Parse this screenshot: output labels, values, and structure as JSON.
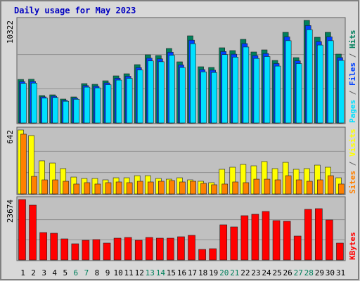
{
  "chart_data": [
    {
      "type": "bar",
      "title": "Daily usage for May 2023",
      "ylim": [
        0,
        10322
      ],
      "yticks": [
        10322
      ],
      "grid": true,
      "legend_separator": " / ",
      "series": [
        {
          "name": "Hits",
          "color": "#00805c",
          "values": [
            4380,
            4400,
            2757,
            2828,
            2404,
            2616,
            3959,
            3889,
            4242,
            4737,
            4949,
            5868,
            6858,
            6787,
            7494,
            6151,
            8767,
            5656,
            5585,
            7565,
            7282,
            8413,
            7141,
            7353,
            6292,
            9120,
            6575,
            10322,
            8625,
            9120,
            6928
          ]
        },
        {
          "name": "Files",
          "color": "#0040ff",
          "values": [
            4160,
            4180,
            2620,
            2690,
            2280,
            2490,
            3760,
            3690,
            4030,
            4500,
            4700,
            5570,
            6520,
            6450,
            7120,
            5840,
            8330,
            5370,
            5310,
            7190,
            6920,
            7990,
            6780,
            6990,
            5980,
            8660,
            6250,
            9800,
            8190,
            8660,
            6580
          ]
        },
        {
          "name": "Pages",
          "color": "#00e0ff",
          "values": [
            3980,
            4010,
            2500,
            2560,
            2180,
            2380,
            3600,
            3530,
            3850,
            4310,
            4490,
            5330,
            6240,
            6160,
            6810,
            5580,
            7970,
            5140,
            5080,
            6880,
            6620,
            7640,
            6490,
            6680,
            5720,
            8280,
            5970,
            9380,
            7840,
            8280,
            6290
          ]
        }
      ]
    },
    {
      "type": "bar",
      "ylim": [
        0,
        642
      ],
      "yticks": [
        642
      ],
      "grid": true,
      "legend_separator": " / ",
      "series": [
        {
          "name": "Visits",
          "color": "#ffff00",
          "values": [
            642,
            586,
            332,
            310,
            254,
            169,
            155,
            155,
            141,
            162,
            162,
            183,
            183,
            155,
            148,
            162,
            141,
            127,
            113,
            247,
            268,
            296,
            282,
            325,
            254,
            317,
            247,
            254,
            289,
            268,
            162
          ]
        },
        {
          "name": "Sites",
          "color": "#ff8000",
          "values": [
            600,
            176,
            141,
            141,
            127,
            99,
            113,
            99,
            113,
            120,
            113,
            127,
            120,
            127,
            134,
            120,
            127,
            106,
            92,
            99,
            120,
            113,
            148,
            148,
            141,
            183,
            141,
            127,
            141,
            183,
            99
          ]
        }
      ]
    },
    {
      "type": "bar",
      "ylim": [
        0,
        23674
      ],
      "yticks": [
        23674
      ],
      "grid": true,
      "categories": [
        "1",
        "2",
        "3",
        "4",
        "5",
        "6",
        "7",
        "8",
        "9",
        "10",
        "11",
        "12",
        "13",
        "14",
        "15",
        "16",
        "17",
        "18",
        "19",
        "20",
        "21",
        "22",
        "23",
        "24",
        "25",
        "26",
        "27",
        "28",
        "29",
        "30",
        "31"
      ],
      "category_colors": [
        "#000000",
        "#000000",
        "#000000",
        "#000000",
        "#000000",
        "#00805c",
        "#00805c",
        "#000000",
        "#000000",
        "#000000",
        "#000000",
        "#000000",
        "#00805c",
        "#00805c",
        "#000000",
        "#000000",
        "#000000",
        "#000000",
        "#000000",
        "#00805c",
        "#00805c",
        "#000000",
        "#000000",
        "#000000",
        "#000000",
        "#000000",
        "#00805c",
        "#00805c",
        "#000000",
        "#000000",
        "#000000"
      ],
      "series": [
        {
          "name": "KBytes",
          "color": "#ff0000",
          "values": [
            23674,
            21473,
            10737,
            10461,
            8259,
            6332,
            7708,
            7984,
            6607,
            8534,
            8810,
            7708,
            8810,
            8534,
            8534,
            9085,
            9636,
            4130,
            4405,
            13765,
            12939,
            17344,
            17895,
            18996,
            15417,
            15142,
            9360,
            19822,
            20097,
            15692,
            6607
          ]
        }
      ]
    }
  ]
}
